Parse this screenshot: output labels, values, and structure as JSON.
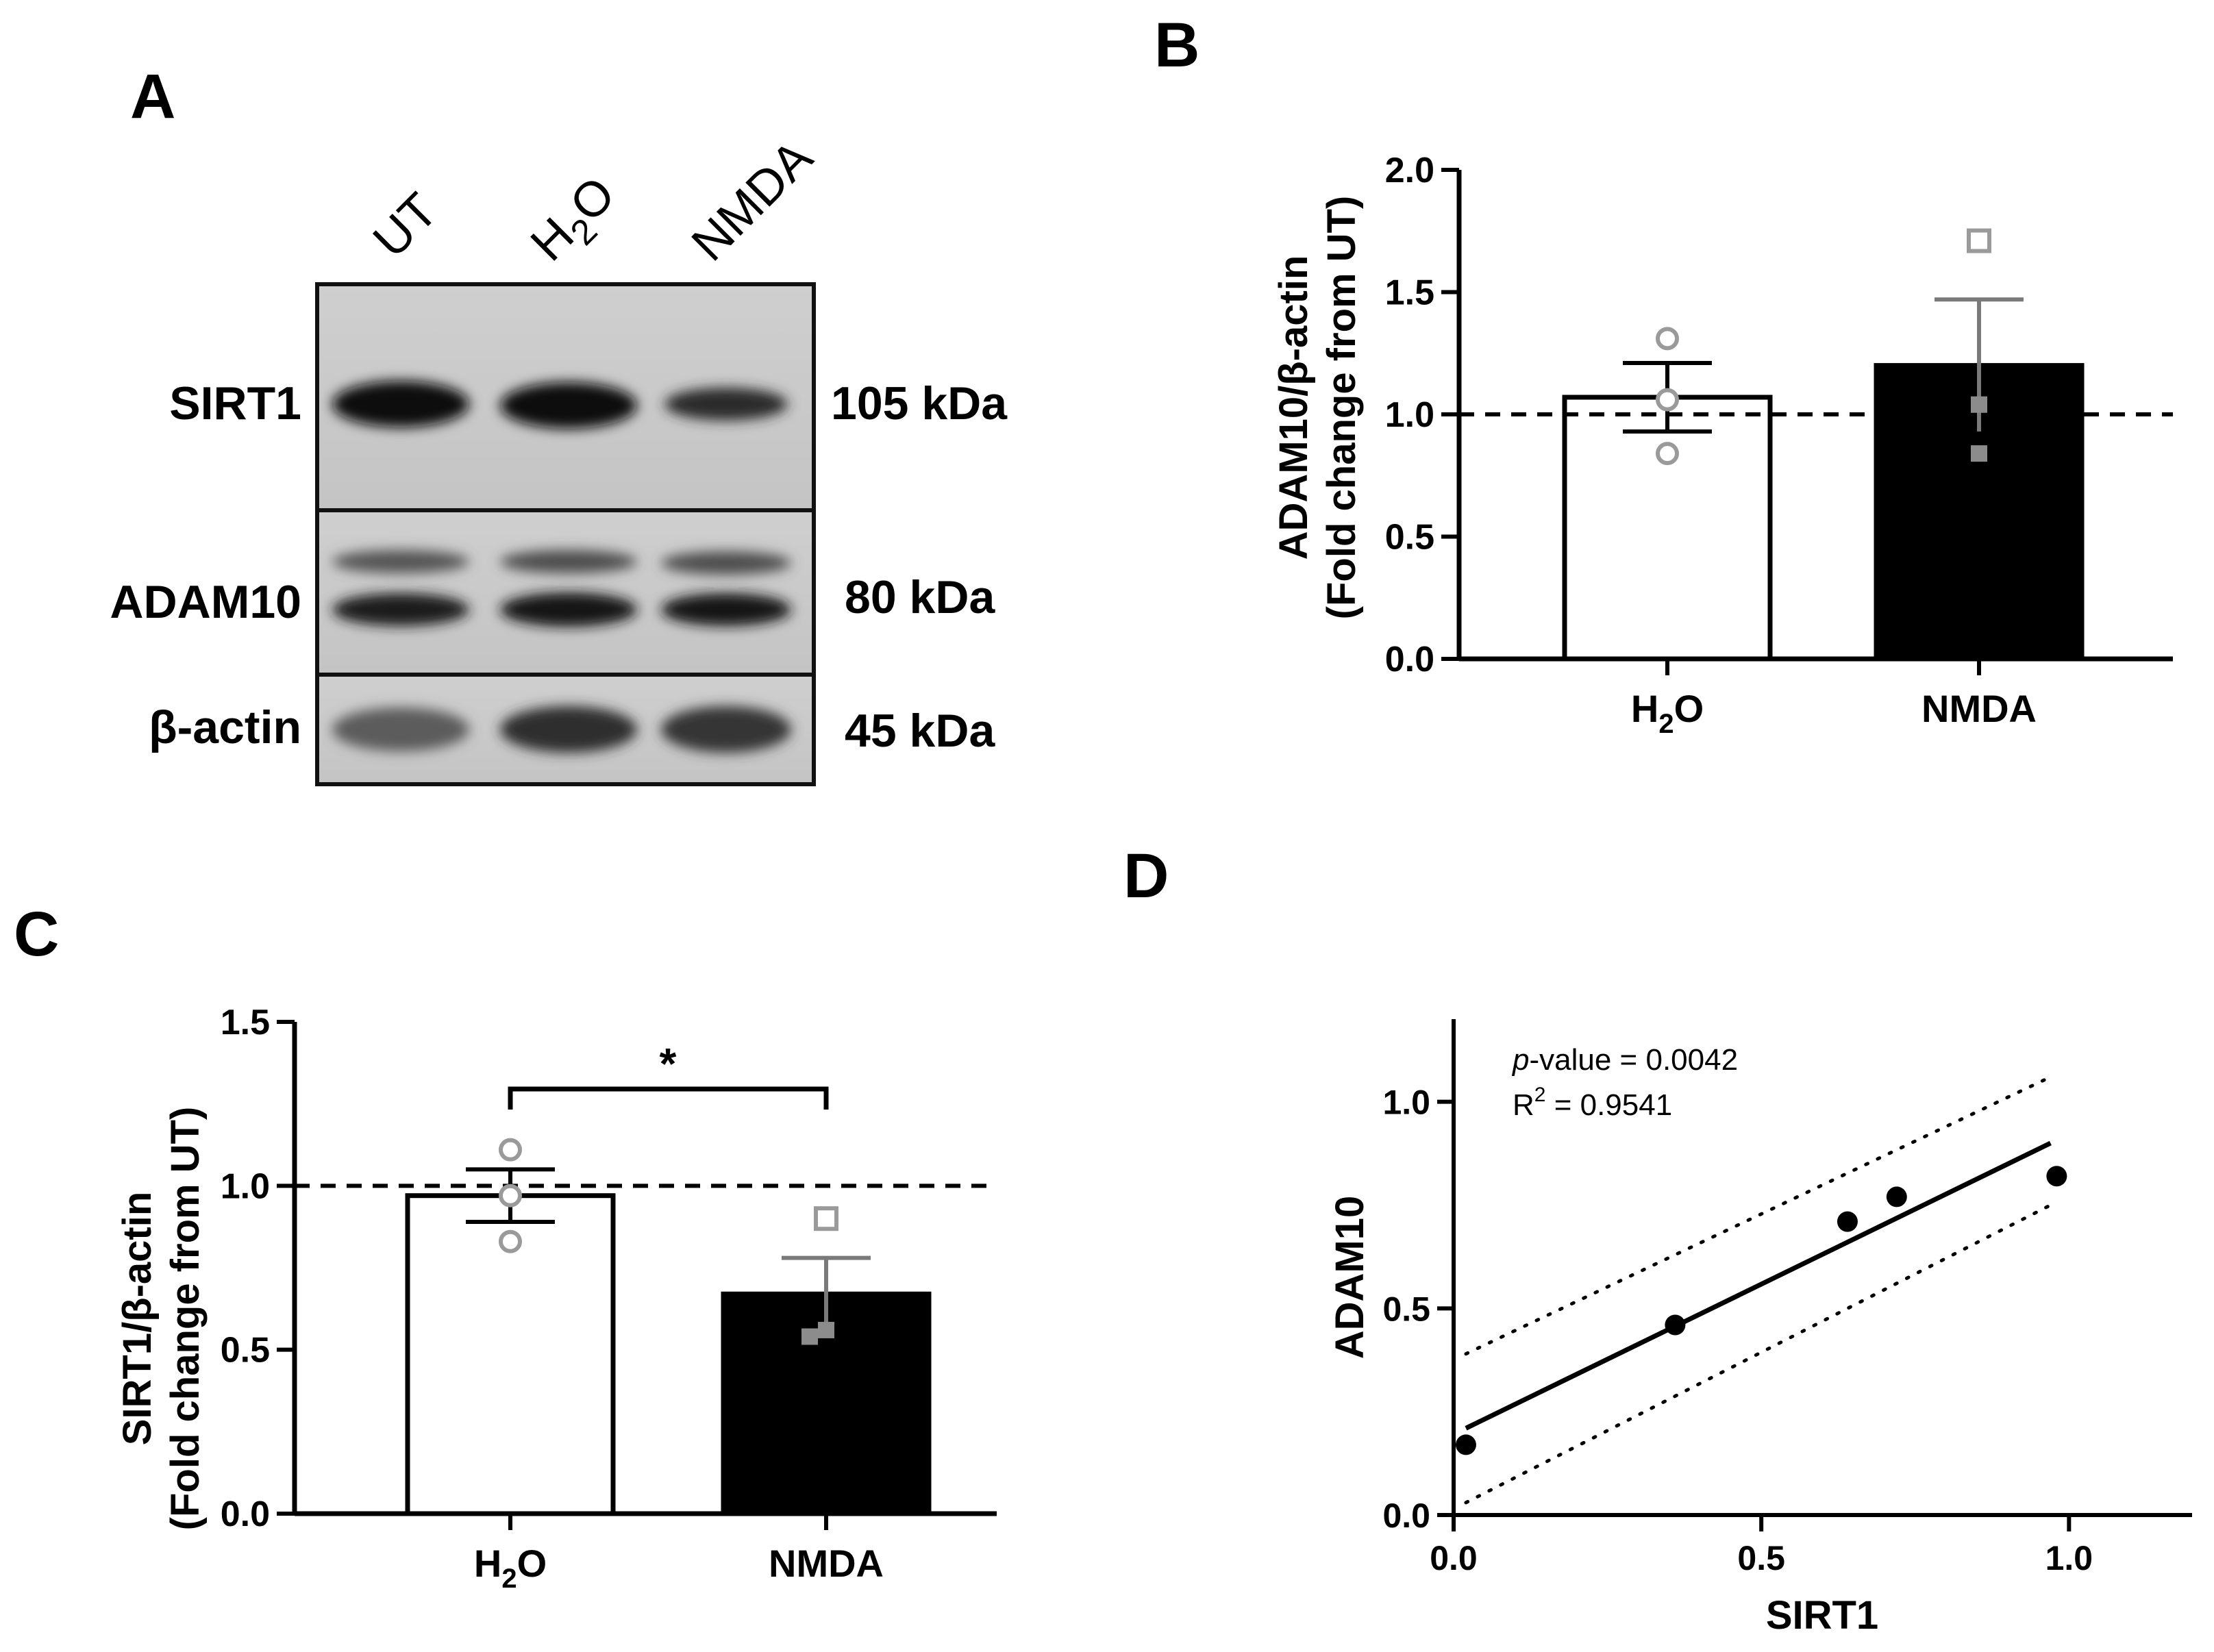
{
  "panel_labels": {
    "a": "A",
    "b": "B",
    "c": "C",
    "d": "D"
  },
  "blot": {
    "lanes": [
      {
        "text": "UT",
        "sub": ""
      },
      {
        "text": "H",
        "sub": "2",
        "after": "O"
      },
      {
        "text": "NMDA",
        "sub": ""
      }
    ],
    "rows": [
      {
        "label": "SIRT1",
        "kda": "105 kDa"
      },
      {
        "label": "ADAM10",
        "kda": "80 kDa"
      },
      {
        "label": "β-actin",
        "kda": "45 kDa"
      }
    ]
  },
  "chart_data": [
    {
      "panel": "B",
      "type": "bar",
      "ylabel_line1": "ADAM10/β-actin",
      "ylabel_line2": "(Fold change from UT)",
      "ylim": [
        0,
        2.0
      ],
      "yticks": [
        "0.0",
        "0.5",
        "1.0",
        "1.5",
        "2.0"
      ],
      "categories": [
        {
          "text": "H",
          "sub": "2",
          "after": "O"
        },
        {
          "text": "NMDA",
          "sub": "",
          "after": ""
        }
      ],
      "values": [
        1.07,
        1.2
      ],
      "sem": [
        0.14,
        0.27
      ],
      "points": [
        [
          1.31,
          1.06,
          0.84
        ],
        [
          1.71,
          1.04,
          0.84
        ]
      ],
      "bar_fill": [
        "#ffffff",
        "#000000"
      ],
      "reference_line": 1.0
    },
    {
      "panel": "C",
      "type": "bar",
      "ylabel_line1": "SIRT1/β-actin",
      "ylabel_line2": "(Fold change from UT)",
      "ylim": [
        0,
        1.5
      ],
      "yticks": [
        "0.0",
        "0.5",
        "1.0",
        "1.5"
      ],
      "categories": [
        {
          "text": "H",
          "sub": "2",
          "after": "O"
        },
        {
          "text": "NMDA",
          "sub": "",
          "after": ""
        }
      ],
      "values": [
        0.97,
        0.67
      ],
      "sem": [
        0.08,
        0.11
      ],
      "points": [
        [
          1.11,
          0.97,
          0.83
        ],
        [
          0.9,
          0.56,
          0.54
        ]
      ],
      "bar_fill": [
        "#ffffff",
        "#000000"
      ],
      "reference_line": 1.0,
      "significance": "*"
    },
    {
      "panel": "D",
      "type": "scatter",
      "xlabel": "SIRT1",
      "ylabel": "ADAM10",
      "xlim": [
        0,
        1.2
      ],
      "ylim": [
        0,
        1.2
      ],
      "xticks": [
        "0.0",
        "0.5",
        "1.0"
      ],
      "yticks": [
        "0.0",
        "0.5",
        "1.0"
      ],
      "x": [
        0.02,
        0.36,
        0.64,
        0.72,
        0.98
      ],
      "y": [
        0.17,
        0.46,
        0.71,
        0.77,
        0.82
      ],
      "fit": {
        "x": [
          0.02,
          0.97
        ],
        "y": [
          0.21,
          0.9
        ]
      },
      "ci_upper": {
        "x": [
          0.02,
          0.97
        ],
        "y": [
          0.39,
          1.06
        ]
      },
      "ci_lower": {
        "x": [
          0.02,
          0.97
        ],
        "y": [
          0.03,
          0.75
        ]
      },
      "stats": {
        "p_label": "p",
        "p_rest": "-value = 0.0042",
        "r2_label": "R",
        "r2_sup": "2",
        "r2_rest": " = 0.9541"
      }
    }
  ]
}
